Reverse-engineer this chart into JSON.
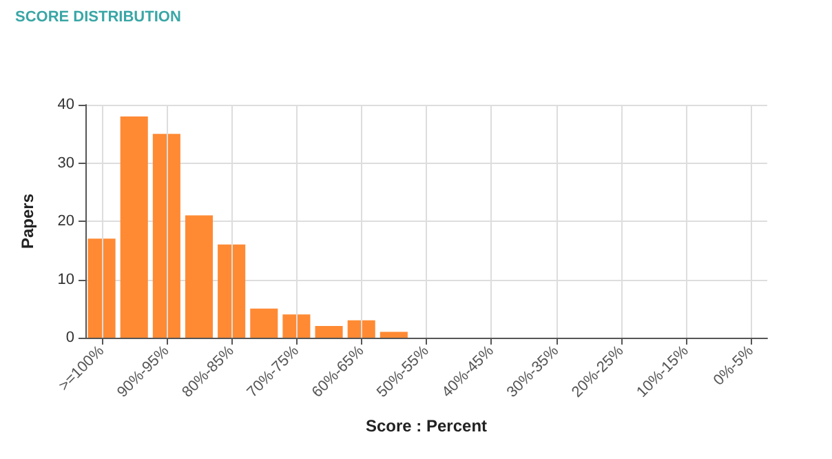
{
  "chart_data": {
    "type": "bar",
    "title": "SCORE DISTRIBUTION",
    "xlabel": "Score : Percent",
    "ylabel": "Papers",
    "categories": [
      ">=100%",
      null,
      "90%-95%",
      null,
      "80%-85%",
      null,
      "70%-75%",
      null,
      "60%-65%",
      null,
      "50%-55%",
      null,
      "40%-45%",
      null,
      "30%-35%",
      null,
      "20%-25%",
      null,
      "10%-15%",
      null,
      "0%-5%"
    ],
    "values": [
      17,
      38,
      35,
      21,
      16,
      5,
      4,
      2,
      3,
      1,
      0,
      0,
      0,
      0,
      0,
      0,
      0,
      0,
      0,
      0,
      0
    ],
    "color": "#ff8a33",
    "ylim": [
      0,
      40
    ],
    "yticks": [
      0,
      10,
      20,
      30,
      40
    ],
    "grid": true
  }
}
